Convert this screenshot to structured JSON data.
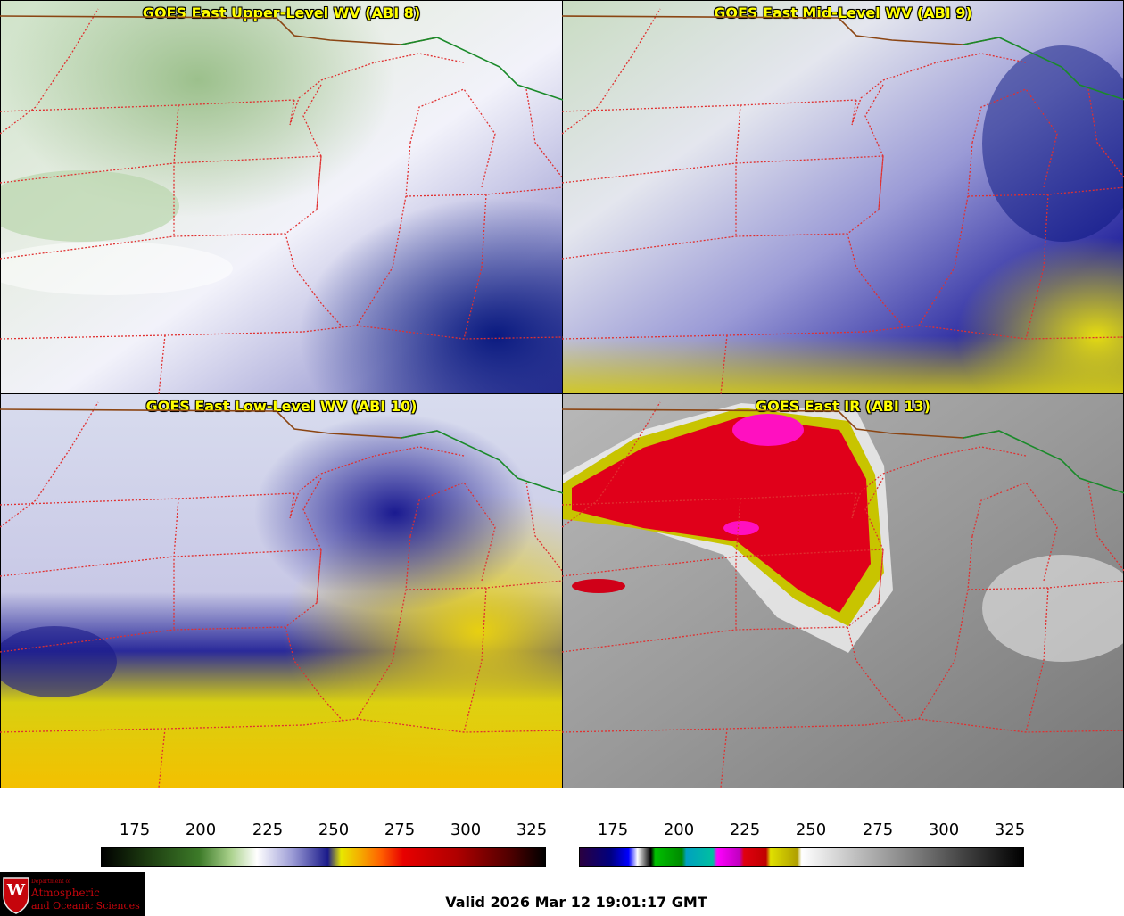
{
  "panels": [
    {
      "id": "p1",
      "title": "GOES East Upper-Level WV (ABI 8)",
      "style": "uwv"
    },
    {
      "id": "p2",
      "title": "GOES East Mid-Level WV (ABI 9)",
      "style": "mwv"
    },
    {
      "id": "p3",
      "title": "GOES East Low-Level WV (ABI 10)",
      "style": "lwv"
    },
    {
      "id": "p4",
      "title": "GOES East IR (ABI 13)",
      "style": "ir"
    }
  ],
  "colorbars": {
    "wv": {
      "ticks": [
        "175",
        "200",
        "225",
        "250",
        "275",
        "300",
        "325"
      ]
    },
    "ir": {
      "ticks": [
        "175",
        "200",
        "225",
        "250",
        "275",
        "300",
        "325"
      ]
    }
  },
  "logo": {
    "line1": "Department of",
    "line2": "Atmospheric",
    "line3": "and Oceanic Sciences",
    "emblem": "W"
  },
  "valid_time": "Valid 2026 Mar 12 19:01:17 GMT",
  "colors": {
    "state_border": "#e03030",
    "intl_border": "#8b4513",
    "canada_border": "#1a8a2a",
    "title": "#ffff00"
  }
}
